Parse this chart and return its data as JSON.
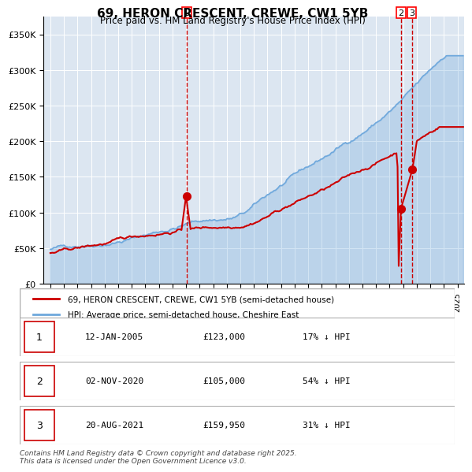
{
  "title": "69, HERON CRESCENT, CREWE, CW1 5YB",
  "subtitle": "Price paid vs. HM Land Registry's House Price Index (HPI)",
  "legend_red": "69, HERON CRESCENT, CREWE, CW1 5YB (semi-detached house)",
  "legend_blue": "HPI: Average price, semi-detached house, Cheshire East",
  "table_rows": [
    {
      "num": "1",
      "date": "12-JAN-2005",
      "price": "£123,000",
      "hpi": "17% ↓ HPI"
    },
    {
      "num": "2",
      "date": "02-NOV-2020",
      "price": "£105,000",
      "hpi": "54% ↓ HPI"
    },
    {
      "num": "3",
      "date": "20-AUG-2021",
      "price": "£159,950",
      "hpi": "31% ↓ HPI"
    }
  ],
  "footnote": "Contains HM Land Registry data © Crown copyright and database right 2025.\nThis data is licensed under the Open Government Licence v3.0.",
  "vline1_x": 2005.04,
  "vline2_x": 2020.84,
  "vline3_x": 2021.64,
  "sale1_x": 2005.04,
  "sale1_y": 123000,
  "sale2_x": 2020.84,
  "sale2_y": 105000,
  "sale3_x": 2021.64,
  "sale3_y": 159950,
  "ylim": [
    0,
    375000
  ],
  "xlim": [
    1994.5,
    2025.5
  ],
  "blue_color": "#6fa8dc",
  "red_color": "#cc0000",
  "vline_color": "#cc0000",
  "bg_color": "#dce6f1",
  "plot_bg": "#dce6f1"
}
